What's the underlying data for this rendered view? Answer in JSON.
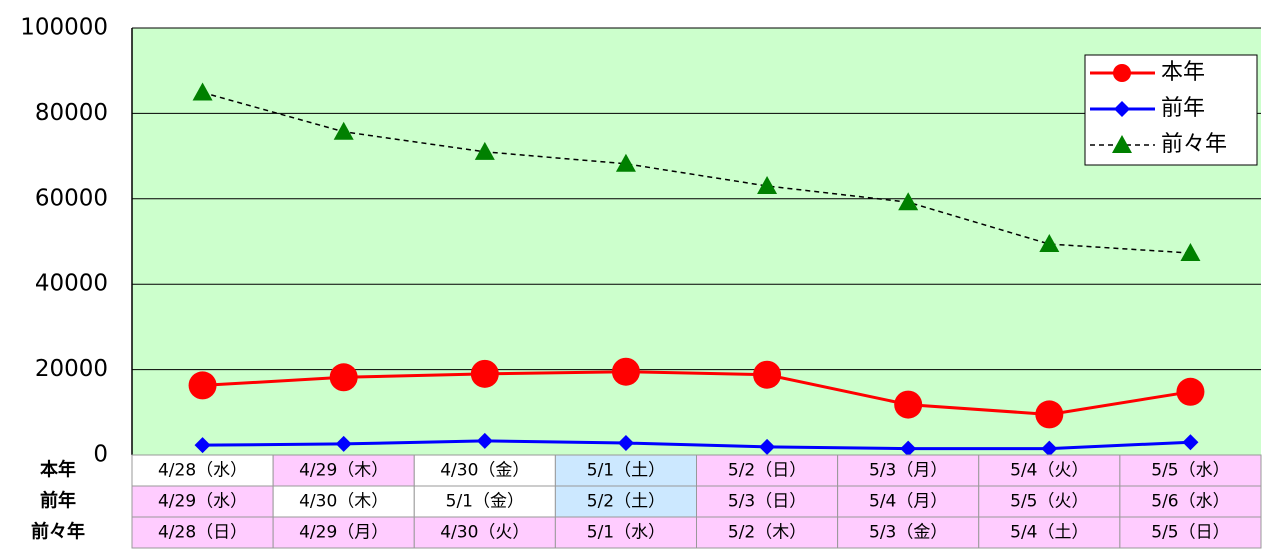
{
  "chart_data": {
    "type": "line",
    "ylim": [
      0,
      100000
    ],
    "yticks": [
      0,
      20000,
      40000,
      60000,
      80000,
      100000
    ],
    "grid": true,
    "plot_color": "#ccffcc",
    "legend": "top-right",
    "series": [
      {
        "name": "本年",
        "color": "#ff0000",
        "marker": "circle",
        "dash": false,
        "values": [
          16300,
          18200,
          19000,
          19500,
          18800,
          11800,
          9500,
          14800
        ]
      },
      {
        "name": "前年",
        "color": "#0000ff",
        "marker": "diamond",
        "dash": false,
        "values": [
          2300,
          2600,
          3300,
          2800,
          1900,
          1500,
          1500,
          3000
        ]
      },
      {
        "name": "前々年",
        "color": "#008000",
        "line_color": "#000000",
        "marker": "triangle",
        "dash": true,
        "values": [
          84900,
          75700,
          71000,
          68200,
          63000,
          59200,
          49400,
          47300
        ]
      }
    ],
    "table": {
      "row_labels": [
        "本年",
        "前年",
        "前々年"
      ],
      "rows": [
        [
          "4/28（水）",
          "4/29（木）",
          "4/30（金）",
          "5/1（土）",
          "5/2（日）",
          "5/3（月）",
          "5/4（火）",
          "5/5（水）"
        ],
        [
          "4/29（水）",
          "4/30（木）",
          "5/1（金）",
          "5/2（土）",
          "5/3（日）",
          "5/4（月）",
          "5/5（火）",
          "5/6（水）"
        ],
        [
          "4/28（日）",
          "4/29（月）",
          "4/30（火）",
          "5/1（水）",
          "5/2（木）",
          "5/3（金）",
          "5/4（土）",
          "5/5（日）"
        ]
      ],
      "cell_colors": [
        [
          "#ffffff",
          "#ffccff",
          "#ffffff",
          "#cce8ff",
          "#ffccff",
          "#ffccff",
          "#ffccff",
          "#ffccff"
        ],
        [
          "#ffccff",
          "#ffffff",
          "#ffffff",
          "#cce8ff",
          "#ffccff",
          "#ffccff",
          "#ffccff",
          "#ffccff"
        ],
        [
          "#ffccff",
          "#ffccff",
          "#ffccff",
          "#ffccff",
          "#ffccff",
          "#ffccff",
          "#ffccff",
          "#ffccff"
        ]
      ]
    }
  }
}
